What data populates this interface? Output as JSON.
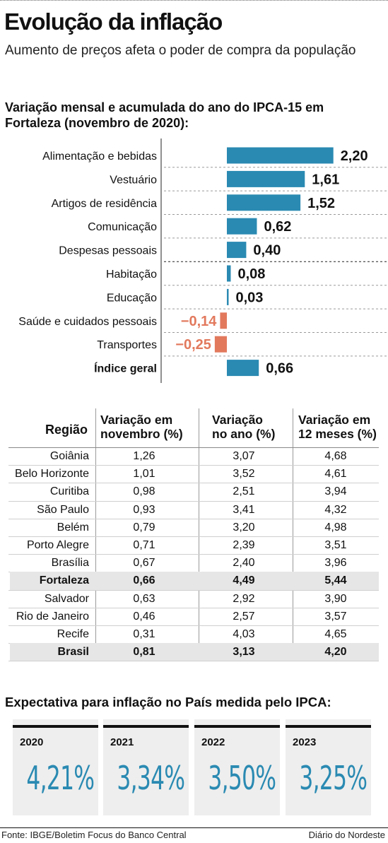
{
  "header": {
    "title": "Evolução da inflação",
    "subtitle": "Aumento de preços afeta o poder de compra da população"
  },
  "chart_data": {
    "type": "bar",
    "orientation": "horizontal",
    "title": "Variação mensal e acumulada do ano do IPCA-15 em Fortaleza (novembro de 2020):",
    "categories": [
      "Alimentação e bebidas",
      "Vestuário",
      "Artigos de residência",
      "Comunicação",
      "Despesas pessoais",
      "Habitação",
      "Educação",
      "Saúde e cuidados pessoais",
      "Transportes",
      "Índice geral"
    ],
    "values": [
      2.2,
      1.61,
      1.52,
      0.62,
      0.4,
      0.08,
      0.03,
      -0.14,
      -0.25,
      0.66
    ],
    "labels": [
      "2,20",
      "1,61",
      "1,52",
      "0,62",
      "0,40",
      "0,08",
      "0,03",
      "−0,14",
      "−0,25",
      "0,66"
    ],
    "colors": {
      "positive": "#2a8ab2",
      "negative": "#e2795d"
    },
    "grid": false
  },
  "table": {
    "headers": [
      "Região",
      [
        "Variação em",
        "novembro (%)"
      ],
      [
        "Variação",
        "no ano (%)"
      ],
      [
        "Variação em",
        "12 meses (%)"
      ]
    ],
    "rows": [
      [
        "Goiânia",
        "1,26",
        "3,07",
        "4,68"
      ],
      [
        "Belo Horizonte",
        "1,01",
        "3,52",
        "4,61"
      ],
      [
        "Curitiba",
        "0,98",
        "2,51",
        "3,94"
      ],
      [
        "São Paulo",
        "0,93",
        "3,41",
        "4,32"
      ],
      [
        "Belém",
        "0,79",
        "3,20",
        "4,98"
      ],
      [
        "Porto Alegre",
        "0,71",
        "2,39",
        "3,51"
      ],
      [
        "Brasília",
        "0,67",
        "2,40",
        "3,96"
      ],
      [
        "Fortaleza",
        "0,66",
        "4,49",
        "5,44"
      ],
      [
        "Salvador",
        "0,63",
        "2,92",
        "3,90"
      ],
      [
        "Rio de Janeiro",
        "0,46",
        "2,57",
        "3,57"
      ],
      [
        "Recife",
        "0,31",
        "4,03",
        "4,65"
      ],
      [
        "Brasil",
        "0,81",
        "3,13",
        "4,20"
      ]
    ],
    "highlight_rows": [
      "Fortaleza",
      "Brasil"
    ],
    "highlight_color": "#e6e6e6"
  },
  "expectations": {
    "title": "Expectativa para inflação no País medida pelo IPCA:",
    "items": [
      {
        "year": "2020",
        "value": "4,21%"
      },
      {
        "year": "2021",
        "value": "3,34%"
      },
      {
        "year": "2022",
        "value": "3,50%"
      },
      {
        "year": "2023",
        "value": "3,25%"
      }
    ],
    "value_color": "#2a8ab2"
  },
  "footer": {
    "source": "Fonte: IBGE/Boletim Focus do Banco Central",
    "credit": "Diário do Nordeste"
  }
}
